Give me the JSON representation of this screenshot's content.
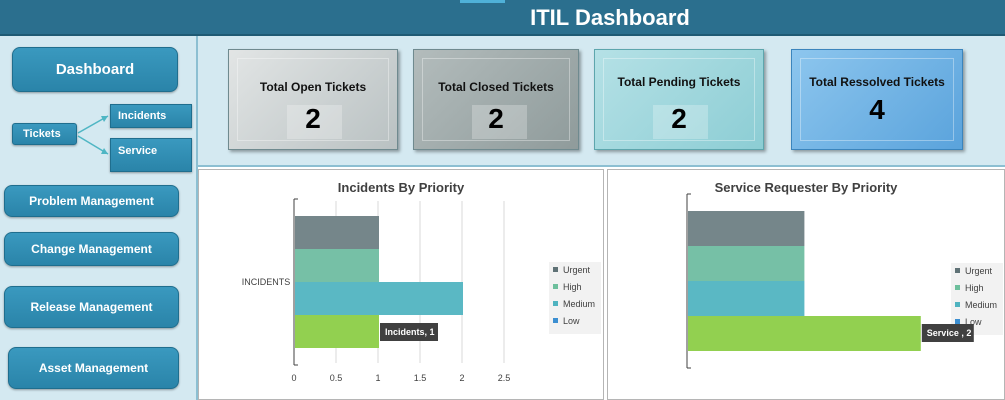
{
  "header": {
    "title": "ITIL Dashboard",
    "bg_color": "#2b6f8e"
  },
  "sidebar": {
    "dashboard": "Dashboard",
    "tickets": "Tickets",
    "incidents": "Incidents",
    "service": "Service",
    "problem_management": "Problem Management",
    "change_management": "Change Management",
    "release_management": "Release Management",
    "asset_management": "Asset Management"
  },
  "kpis": [
    {
      "label": "Total Open Tickets",
      "value": "2"
    },
    {
      "label": "Total Closed Tickets",
      "value": "2"
    },
    {
      "label": "Total Pending Tickets",
      "value": "2"
    },
    {
      "label": "Total Ressolved Tickets",
      "value": "4"
    }
  ],
  "chart_data": [
    {
      "type": "bar",
      "orientation": "horizontal",
      "title": "Incidents By Priority",
      "categories": [
        "INCIDENTS"
      ],
      "series": [
        {
          "name": "Urgent",
          "values": [
            1
          ],
          "color": "#75868a"
        },
        {
          "name": "High",
          "values": [
            1
          ],
          "color": "#76c0a6"
        },
        {
          "name": "Medium",
          "values": [
            2
          ],
          "color": "#5ab8c4"
        },
        {
          "name": "Low",
          "values": [
            1
          ],
          "color": "#92d050"
        }
      ],
      "xlim": [
        0,
        2.5
      ],
      "xticks": [
        "0",
        "0.5",
        "1",
        "1.5",
        "2",
        "2.5"
      ],
      "grid": true,
      "legend": "right",
      "annotation": "Incidents, 1"
    },
    {
      "type": "bar",
      "orientation": "horizontal",
      "title": "Service Requester By Priority",
      "categories": [
        ""
      ],
      "series": [
        {
          "name": "Urgent",
          "values": [
            1
          ],
          "color": "#75868a"
        },
        {
          "name": "High",
          "values": [
            1
          ],
          "color": "#76c0a6"
        },
        {
          "name": "Medium",
          "values": [
            1
          ],
          "color": "#5ab8c4"
        },
        {
          "name": "Low",
          "values": [
            2
          ],
          "color": "#92d050"
        }
      ],
      "xlim": [
        0,
        2.5
      ],
      "grid": false,
      "legend": "right",
      "annotation": "Service , 2"
    }
  ],
  "legend_colors": {
    "Urgent": "#5f7276",
    "High": "#6dbf9c",
    "Medium": "#4fb3c0",
    "Low": "#3c8fd1"
  }
}
